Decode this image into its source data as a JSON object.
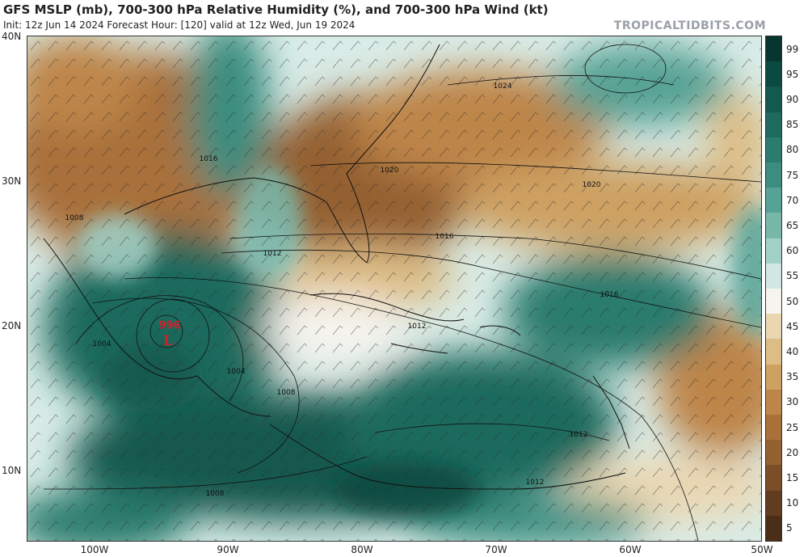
{
  "header": {
    "title": "GFS MSLP (mb), 700-300 hPa Relative Humidity (%), and 700-300 hPa Wind (kt)",
    "subtitle": "Init: 12z Jun 14 2024   Forecast Hour: [120]   valid at 12z Wed, Jun 19 2024",
    "brand": "TROPICALTIDBITS.COM"
  },
  "axes": {
    "lat_labels": [
      "40N",
      "30N",
      "20N",
      "10N"
    ],
    "lon_labels": [
      "100W",
      "90W",
      "80W",
      "70W",
      "60W",
      "50W"
    ]
  },
  "colorbar": {
    "labels": [
      "99",
      "95",
      "90",
      "85",
      "80",
      "75",
      "70",
      "65",
      "60",
      "55",
      "50",
      "45",
      "40",
      "35",
      "30",
      "25",
      "20",
      "15",
      "10",
      "5"
    ],
    "colors": [
      "#06362f",
      "#0b4a40",
      "#13594d",
      "#1e6b5d",
      "#2b7c6d",
      "#3b8d7f",
      "#56a294",
      "#77b8ab",
      "#a2d2c7",
      "#d2e9e3",
      "#f6f4ee",
      "#ead7b2",
      "#ddbd86",
      "#cea062",
      "#be854a",
      "#a9703a",
      "#946030",
      "#7c4e27",
      "#613c1f",
      "#4a2e18"
    ]
  },
  "isobars": [
    {
      "text": "1024"
    },
    {
      "text": "1020"
    },
    {
      "text": "1020"
    },
    {
      "text": "1016"
    },
    {
      "text": "1016"
    },
    {
      "text": "1016"
    },
    {
      "text": "1012"
    },
    {
      "text": "1012"
    },
    {
      "text": "1012"
    },
    {
      "text": "1012"
    },
    {
      "text": "1008"
    },
    {
      "text": "1008"
    },
    {
      "text": "1008"
    },
    {
      "text": "1004"
    },
    {
      "text": "1004"
    }
  ],
  "low": {
    "pressure": "996",
    "symbol": "L"
  }
}
